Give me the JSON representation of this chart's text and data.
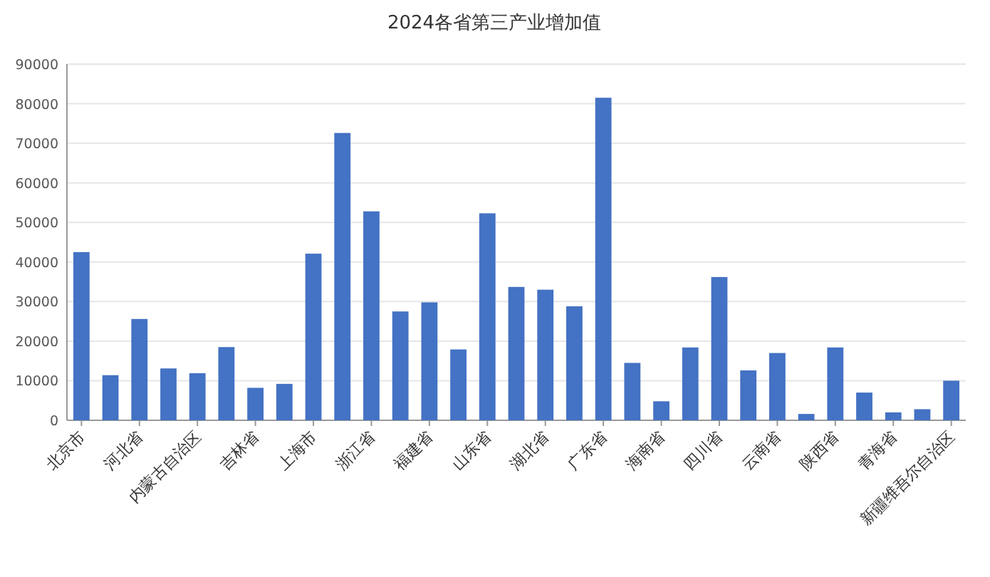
{
  "chart_data": {
    "type": "bar",
    "title": "2024各省第三产业增加值",
    "categories": [
      "北京市",
      null,
      "河北省",
      null,
      "内蒙古自治区",
      null,
      "吉林省",
      null,
      "上海市",
      null,
      "浙江省",
      null,
      "福建省",
      null,
      "山东省",
      null,
      "湖北省",
      null,
      "广东省",
      null,
      "海南省",
      null,
      "四川省",
      null,
      "云南省",
      null,
      "陕西省",
      null,
      "青海省",
      null,
      "新疆维吾尔自治区"
    ],
    "values": [
      42500,
      11400,
      25600,
      13100,
      11900,
      18500,
      8200,
      9200,
      42100,
      72600,
      52800,
      27500,
      29800,
      17900,
      52300,
      33700,
      33000,
      28800,
      81500,
      14500,
      4800,
      18400,
      36200,
      12600,
      17000,
      1600,
      18400,
      7000,
      2000,
      2800,
      10000
    ],
    "color": "#4472c4",
    "ylim": [
      0,
      90000
    ],
    "yticks": [
      0,
      10000,
      20000,
      30000,
      40000,
      50000,
      60000,
      70000,
      80000,
      90000
    ],
    "grid": "y"
  }
}
